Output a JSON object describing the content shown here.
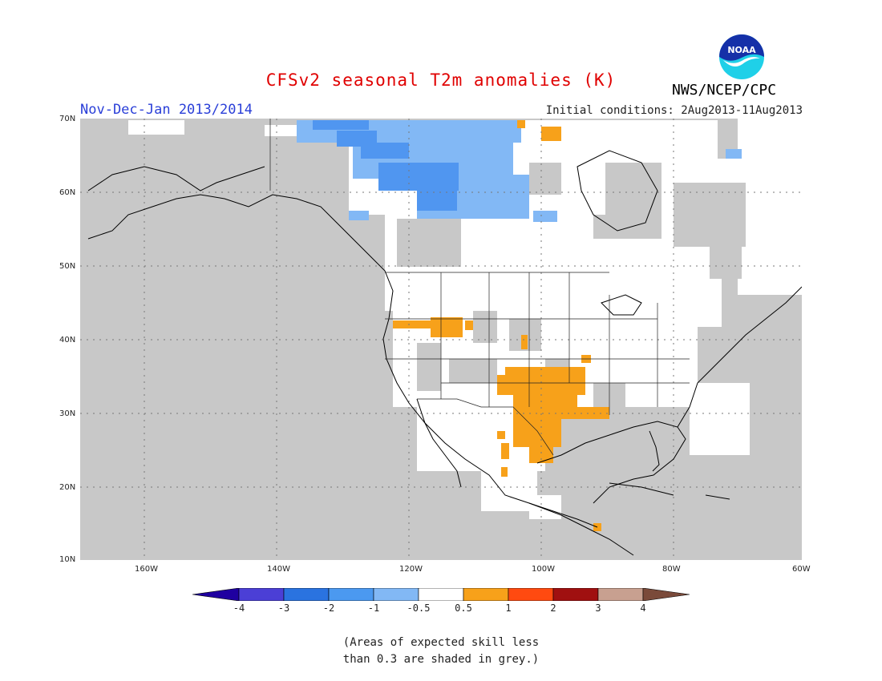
{
  "header": {
    "title": "CFSv2 seasonal T2m anomalies (K)",
    "subtitle": "Nov-Dec-Jan 2013/2014",
    "initial_conditions": "Initial conditions: 2Aug2013-11Aug2013",
    "agency": "NWS/NCEP/CPC",
    "logo_text": "NOAA"
  },
  "map": {
    "lat_labels": [
      "70N",
      "60N",
      "50N",
      "40N",
      "30N",
      "20N",
      "10N"
    ],
    "lon_labels": [
      "160W",
      "140W",
      "120W",
      "100W",
      "80W",
      "60W"
    ],
    "colors": {
      "grey": "#c8c8c8",
      "white": "#ffffff",
      "light_blue": "#82b8f5",
      "mid_blue": "#5096f0",
      "orange": "#f7a11a",
      "coast": "#000000"
    }
  },
  "colorbar": {
    "ticks": [
      "-4",
      "-3",
      "-2",
      "-1",
      "-0.5",
      "0.5",
      "1",
      "2",
      "3",
      "4"
    ],
    "colors": [
      "#1f00a0",
      "#4b3fd6",
      "#2a73e0",
      "#4b99f0",
      "#82b8f5",
      "#ffffff",
      "#f7a11a",
      "#ff4a10",
      "#a01010",
      "#c8a090",
      "#7a4a3a"
    ]
  },
  "note": {
    "line1": "(Areas of expected skill less",
    "line2": "than 0.3 are shaded in grey.)"
  }
}
